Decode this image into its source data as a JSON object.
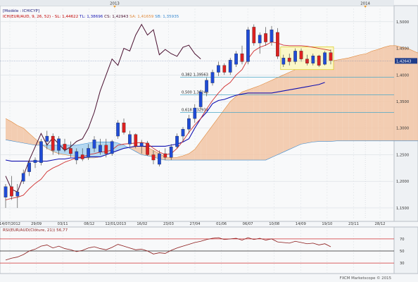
{
  "chart_data": [
    {
      "type": "candlestick",
      "header": {
        "line1": "[Modèle : ICHICYP]",
        "line2_parts": [
          {
            "text": "ICH(EUR/AUD, 9, 26, 52) -",
            "color": "#c00000"
          },
          {
            "text": "SL: 1,44622",
            "color": "#c00000"
          },
          {
            "text": "TL: 1,38696",
            "color": "#1a1ab4"
          },
          {
            "text": "CS: 1,42943",
            "color": "#4a1030"
          },
          {
            "text": "SA: 1,41659",
            "color": "#e08a3c"
          },
          {
            "text": "SB: 1,35935",
            "color": "#3a8ad0"
          }
        ]
      },
      "top_axis": {
        "labels": [
          {
            "text": "2013",
            "x": 0.291
          },
          {
            "text": "2014",
            "x": 0.927
          }
        ]
      },
      "x_ticks": [
        "14/07/2012",
        "29/09",
        "03/11",
        "08/12",
        "12/01/2013",
        "16/02",
        "23/03",
        "27/04",
        "01/06",
        "06/07",
        "10/08",
        "14/09",
        "19/10",
        "23/11",
        "28/12"
      ],
      "y_ticks": [
        "1,5000",
        "1,4500",
        "1,4000",
        "1,3500",
        "1,3000",
        "1,2500",
        "1,2000",
        "1,1500"
      ],
      "ylim": [
        1.13,
        1.525
      ],
      "current_price": "1,42643",
      "fibonacci": [
        {
          "label": "0,382 1,39563",
          "value": 1.39563
        },
        {
          "label": "0,500 1,36248",
          "value": 1.36248
        },
        {
          "label": "0,618 1,32934",
          "value": 1.32934
        }
      ],
      "candles": [
        {
          "o": 1.17,
          "h": 1.195,
          "l": 1.15,
          "c": 1.19
        },
        {
          "o": 1.19,
          "h": 1.21,
          "l": 1.165,
          "c": 1.172
        },
        {
          "o": 1.172,
          "h": 1.195,
          "l": 1.15,
          "c": 1.18
        },
        {
          "o": 1.2,
          "h": 1.222,
          "l": 1.195,
          "c": 1.215
        },
        {
          "o": 1.218,
          "h": 1.24,
          "l": 1.21,
          "c": 1.235
        },
        {
          "o": 1.235,
          "h": 1.245,
          "l": 1.225,
          "c": 1.24
        },
        {
          "o": 1.235,
          "h": 1.28,
          "l": 1.23,
          "c": 1.275
        },
        {
          "o": 1.275,
          "h": 1.295,
          "l": 1.26,
          "c": 1.285
        },
        {
          "o": 1.285,
          "h": 1.29,
          "l": 1.25,
          "c": 1.258
        },
        {
          "o": 1.258,
          "h": 1.285,
          "l": 1.25,
          "c": 1.28
        },
        {
          "o": 1.27,
          "h": 1.28,
          "l": 1.255,
          "c": 1.26
        },
        {
          "o": 1.262,
          "h": 1.275,
          "l": 1.245,
          "c": 1.252
        },
        {
          "o": 1.24,
          "h": 1.262,
          "l": 1.232,
          "c": 1.256
        },
        {
          "o": 1.25,
          "h": 1.262,
          "l": 1.238,
          "c": 1.242
        },
        {
          "o": 1.245,
          "h": 1.27,
          "l": 1.24,
          "c": 1.262
        },
        {
          "o": 1.262,
          "h": 1.285,
          "l": 1.255,
          "c": 1.278
        },
        {
          "o": 1.255,
          "h": 1.28,
          "l": 1.25,
          "c": 1.268
        },
        {
          "o": 1.268,
          "h": 1.28,
          "l": 1.245,
          "c": 1.252
        },
        {
          "o": 1.252,
          "h": 1.278,
          "l": 1.248,
          "c": 1.275
        },
        {
          "o": 1.285,
          "h": 1.315,
          "l": 1.28,
          "c": 1.31
        },
        {
          "o": 1.31,
          "h": 1.318,
          "l": 1.288,
          "c": 1.292
        },
        {
          "o": 1.27,
          "h": 1.295,
          "l": 1.265,
          "c": 1.288
        },
        {
          "o": 1.288,
          "h": 1.29,
          "l": 1.262,
          "c": 1.266
        },
        {
          "o": 1.266,
          "h": 1.278,
          "l": 1.252,
          "c": 1.272
        },
        {
          "o": 1.272,
          "h": 1.276,
          "l": 1.248,
          "c": 1.25
        },
        {
          "o": 1.25,
          "h": 1.258,
          "l": 1.232,
          "c": 1.24
        },
        {
          "o": 1.232,
          "h": 1.258,
          "l": 1.228,
          "c": 1.252
        },
        {
          "o": 1.252,
          "h": 1.262,
          "l": 1.24,
          "c": 1.245
        },
        {
          "o": 1.245,
          "h": 1.27,
          "l": 1.24,
          "c": 1.265
        },
        {
          "o": 1.265,
          "h": 1.29,
          "l": 1.262,
          "c": 1.285
        },
        {
          "o": 1.285,
          "h": 1.302,
          "l": 1.275,
          "c": 1.298
        },
        {
          "o": 1.298,
          "h": 1.325,
          "l": 1.29,
          "c": 1.318
        },
        {
          "o": 1.318,
          "h": 1.345,
          "l": 1.31,
          "c": 1.338
        },
        {
          "o": 1.34,
          "h": 1.372,
          "l": 1.335,
          "c": 1.368
        },
        {
          "o": 1.368,
          "h": 1.395,
          "l": 1.36,
          "c": 1.39
        },
        {
          "o": 1.385,
          "h": 1.41,
          "l": 1.38,
          "c": 1.405
        },
        {
          "o": 1.405,
          "h": 1.425,
          "l": 1.398,
          "c": 1.418
        },
        {
          "o": 1.418,
          "h": 1.422,
          "l": 1.4,
          "c": 1.405
        },
        {
          "o": 1.405,
          "h": 1.432,
          "l": 1.4,
          "c": 1.428
        },
        {
          "o": 1.42,
          "h": 1.445,
          "l": 1.415,
          "c": 1.44
        },
        {
          "o": 1.44,
          "h": 1.455,
          "l": 1.42,
          "c": 1.425
        },
        {
          "o": 1.425,
          "h": 1.49,
          "l": 1.42,
          "c": 1.485
        },
        {
          "o": 1.49,
          "h": 1.495,
          "l": 1.455,
          "c": 1.46
        },
        {
          "o": 1.46,
          "h": 1.48,
          "l": 1.44,
          "c": 1.475
        },
        {
          "o": 1.478,
          "h": 1.49,
          "l": 1.455,
          "c": 1.462
        },
        {
          "o": 1.462,
          "h": 1.492,
          "l": 1.455,
          "c": 1.485
        },
        {
          "o": 1.48,
          "h": 1.488,
          "l": 1.43,
          "c": 1.435
        },
        {
          "o": 1.42,
          "h": 1.438,
          "l": 1.415,
          "c": 1.432
        },
        {
          "o": 1.432,
          "h": 1.44,
          "l": 1.418,
          "c": 1.425
        },
        {
          "o": 1.425,
          "h": 1.45,
          "l": 1.42,
          "c": 1.445
        },
        {
          "o": 1.445,
          "h": 1.45,
          "l": 1.425,
          "c": 1.43
        },
        {
          "o": 1.43,
          "h": 1.438,
          "l": 1.418,
          "c": 1.422
        },
        {
          "o": 1.422,
          "h": 1.44,
          "l": 1.418,
          "c": 1.436
        },
        {
          "o": 1.436,
          "h": 1.438,
          "l": 1.415,
          "c": 1.418
        },
        {
          "o": 1.42,
          "h": 1.445,
          "l": 1.418,
          "c": 1.442
        },
        {
          "o": 1.442,
          "h": 1.448,
          "l": 1.42,
          "c": 1.427
        }
      ],
      "tenkan": [
        1.165,
        1.168,
        1.17,
        1.174,
        1.186,
        1.196,
        1.204,
        1.218,
        1.225,
        1.23,
        1.236,
        1.24,
        1.244,
        1.246,
        1.25,
        1.252,
        1.255,
        1.256,
        1.259,
        1.268,
        1.27,
        1.271,
        1.272,
        1.273,
        1.271,
        1.262,
        1.255,
        1.25,
        1.252,
        1.262,
        1.276,
        1.292,
        1.306,
        1.318,
        1.336,
        1.352,
        1.366,
        1.378,
        1.386,
        1.4,
        1.41,
        1.43,
        1.445,
        1.452,
        1.456,
        1.462,
        1.46,
        1.456,
        1.455,
        1.455,
        1.455,
        1.454,
        1.452,
        1.45,
        1.448,
        1.446
      ],
      "kijun": [
        1.24,
        1.238,
        1.238,
        1.238,
        1.238,
        1.238,
        1.238,
        1.238,
        1.24,
        1.242,
        1.242,
        1.244,
        1.244,
        1.244,
        1.246,
        1.246,
        1.246,
        1.25,
        1.254,
        1.258,
        1.262,
        1.264,
        1.266,
        1.266,
        1.266,
        1.266,
        1.266,
        1.266,
        1.268,
        1.27,
        1.274,
        1.28,
        1.3,
        1.318,
        1.33,
        1.346,
        1.352,
        1.354,
        1.358,
        1.362,
        1.364,
        1.366,
        1.366,
        1.366,
        1.366,
        1.366,
        1.368,
        1.37,
        1.372,
        1.374,
        1.376,
        1.378,
        1.38,
        1.382,
        1.386
      ],
      "chikou": [
        1.21,
        1.185,
        1.18,
        1.21,
        1.24,
        1.265,
        1.29,
        1.268,
        1.282,
        1.27,
        1.258,
        1.265,
        1.275,
        1.28,
        1.3,
        1.33,
        1.37,
        1.4,
        1.43,
        1.418,
        1.45,
        1.445,
        1.475,
        1.495,
        1.475,
        1.485,
        1.438,
        1.448,
        1.44,
        1.435,
        1.452,
        1.456,
        1.44,
        1.43
      ],
      "senkou_a": [
        1.318,
        1.312,
        1.305,
        1.3,
        1.29,
        1.28,
        1.27,
        1.262,
        1.256,
        1.252,
        1.25,
        1.248,
        1.246,
        1.244,
        1.244,
        1.244,
        1.246,
        1.25,
        1.254,
        1.258,
        1.262,
        1.264,
        1.266,
        1.266,
        1.264,
        1.258,
        1.252,
        1.246,
        1.244,
        1.245,
        1.248,
        1.252,
        1.26,
        1.275,
        1.29,
        1.305,
        1.32,
        1.335,
        1.35,
        1.36,
        1.368,
        1.372,
        1.376,
        1.38,
        1.385,
        1.39,
        1.395,
        1.4,
        1.405,
        1.41,
        1.414,
        1.416,
        1.42,
        1.422,
        1.424,
        1.426,
        1.428,
        1.43,
        1.432,
        1.435,
        1.438,
        1.44,
        1.445,
        1.448,
        1.452,
        1.455,
        1.455,
        1.452,
        1.45,
        1.445,
        1.44,
        1.43,
        1.42,
        1.412,
        1.408,
        1.405,
        1.404,
        1.41,
        1.43,
        1.455,
        1.475,
        1.49,
        1.505
      ],
      "senkou_b": [
        1.278,
        1.276,
        1.274,
        1.272,
        1.27,
        1.268,
        1.268,
        1.268,
        1.268,
        1.268,
        1.268,
        1.268,
        1.268,
        1.27,
        1.272,
        1.274,
        1.274,
        1.274,
        1.274,
        1.272,
        1.268,
        1.262,
        1.256,
        1.25,
        1.248,
        1.246,
        1.242,
        1.24,
        1.24,
        1.24,
        1.24,
        1.24,
        1.24,
        1.24,
        1.24,
        1.24,
        1.24,
        1.24,
        1.24,
        1.24,
        1.24,
        1.24,
        1.24,
        1.24,
        1.24,
        1.245,
        1.25,
        1.255,
        1.26,
        1.265,
        1.27,
        1.272,
        1.274,
        1.275,
        1.275,
        1.275,
        1.276,
        1.276,
        1.276,
        1.276,
        1.276,
        1.276,
        1.276,
        1.276,
        1.276,
        1.276,
        1.276,
        1.276,
        1.276,
        1.276,
        1.276,
        1.276,
        1.276,
        1.276,
        1.276,
        1.276,
        1.276,
        1.276,
        1.276,
        1.278,
        1.285,
        1.295,
        1.305
      ]
    },
    {
      "type": "line",
      "title": "RSI(EUR/AUD(Clôture, 21)) 56,77",
      "y_ticks": [
        "70",
        "50",
        "30"
      ],
      "ylim": [
        15,
        85
      ],
      "levels": [
        70,
        50,
        30
      ],
      "values": [
        35,
        38,
        40,
        44,
        50,
        53,
        58,
        60,
        55,
        58,
        54,
        52,
        49,
        51,
        55,
        57,
        54,
        52,
        56,
        61,
        58,
        55,
        52,
        53,
        50,
        45,
        47,
        46,
        51,
        55,
        58,
        61,
        64,
        66,
        69,
        71,
        72,
        69,
        70,
        71,
        68,
        72,
        69,
        71,
        68,
        70,
        65,
        64,
        63,
        66,
        64,
        62,
        63,
        60,
        62,
        57
      ]
    }
  ],
  "footer": "FXCM Marketscope © 2015",
  "colors": {
    "bull": "#1f4bd6",
    "bear": "#dc2020",
    "tenkan": "#d03030",
    "kijun": "#1010b0",
    "chikou": "#4a1030",
    "cloud_bull": "#f2c6a4",
    "cloud_bear": "#a8d2ee",
    "fib": "#4aa8c8",
    "rsi": "#8b1a1a",
    "highlight": "#fbf7c8"
  }
}
